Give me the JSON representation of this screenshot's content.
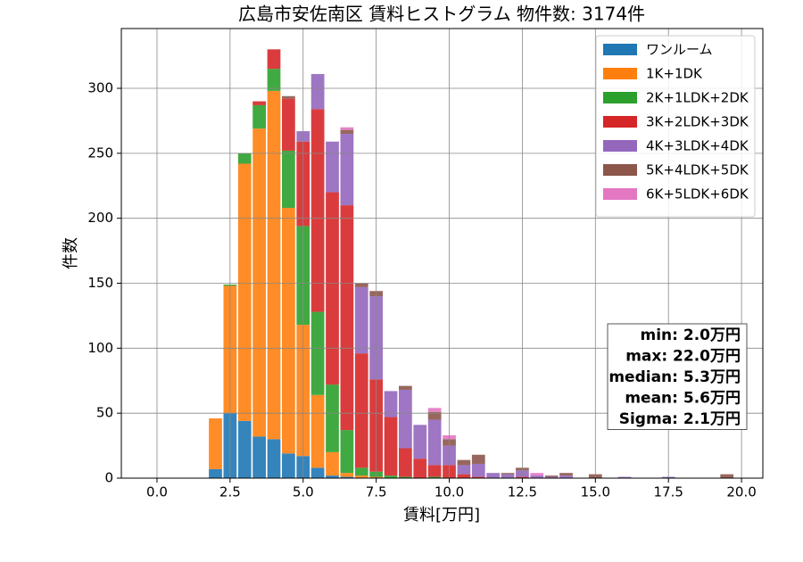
{
  "chart_data": {
    "type": "stacked_histogram",
    "title": "広島市安佐南区 賃料ヒストグラム 物件数: 3174件",
    "x_label": "賃料[万円]",
    "y_label": "件数",
    "bins": [
      1.75,
      2.25,
      2.75,
      3.25,
      3.75,
      4.25,
      4.75,
      5.25,
      5.75,
      6.25,
      6.75,
      7.25,
      7.75,
      8.25,
      8.75,
      9.25,
      9.75,
      10.25,
      10.75,
      11.25,
      11.75,
      12.25,
      12.75,
      13.25,
      13.75,
      14.25,
      14.75,
      15.25,
      15.75,
      16.25,
      16.75,
      17.25,
      17.75,
      18.25,
      18.75,
      19.25,
      19.75
    ],
    "series": [
      {
        "name": "ワンルーム",
        "color": "#1f77b4",
        "values": [
          7,
          50,
          44,
          32,
          30,
          19,
          17,
          8,
          2,
          1,
          0,
          0,
          0,
          0,
          0,
          0,
          0,
          0,
          0,
          0,
          0,
          0,
          0,
          0,
          0,
          0,
          0,
          0,
          0,
          0,
          0,
          0,
          0,
          0,
          0,
          0
        ]
      },
      {
        "name": "1K+1DK",
        "color": "#ff7f0e",
        "values": [
          39,
          98,
          198,
          237,
          268,
          189,
          101,
          56,
          18,
          3,
          2,
          1,
          0,
          0,
          0,
          0,
          0,
          0,
          0,
          0,
          0,
          0,
          0,
          0,
          0,
          0,
          0,
          0,
          0,
          0,
          0,
          0,
          0,
          0,
          0,
          0
        ]
      },
      {
        "name": "2K+1LDK+2DK",
        "color": "#2ca02c",
        "values": [
          0,
          1,
          8,
          18,
          17,
          44,
          76,
          64,
          52,
          33,
          6,
          4,
          2,
          1,
          0,
          1,
          0,
          0,
          0,
          0,
          0,
          0,
          0,
          0,
          0,
          0,
          0,
          0,
          0,
          0,
          0,
          0,
          0,
          0,
          0,
          0
        ]
      },
      {
        "name": "3K+2LDK+3DK",
        "color": "#d62728",
        "values": [
          0,
          0,
          0,
          3,
          15,
          40,
          65,
          156,
          148,
          173,
          88,
          71,
          45,
          22,
          15,
          9,
          10,
          3,
          1,
          0,
          0,
          1,
          0,
          0,
          0,
          0,
          0,
          0,
          0,
          0,
          0,
          0,
          0,
          0,
          0,
          0
        ]
      },
      {
        "name": "4K+3LDK+4DK",
        "color": "#9467bd",
        "values": [
          0,
          0,
          0,
          0,
          0,
          0,
          8,
          27,
          39,
          55,
          51,
          64,
          20,
          45,
          26,
          35,
          15,
          7,
          10,
          4,
          3,
          5,
          2,
          1,
          2,
          0,
          0,
          0,
          1,
          0,
          0,
          1,
          0,
          0,
          0,
          0
        ]
      },
      {
        "name": "5K+4LDK+5DK",
        "color": "#8c564b",
        "values": [
          0,
          0,
          0,
          0,
          0,
          2,
          0,
          0,
          0,
          3,
          3,
          4,
          0,
          3,
          0,
          6,
          5,
          4,
          7,
          0,
          1,
          2,
          0,
          1,
          2,
          0,
          3,
          0,
          0,
          0,
          0,
          0,
          0,
          0,
          0,
          3
        ]
      },
      {
        "name": "6K+5LDK+6DK",
        "color": "#e377c2",
        "values": [
          0,
          0,
          0,
          0,
          0,
          0,
          0,
          0,
          0,
          2,
          0,
          0,
          0,
          0,
          0,
          3,
          3,
          0,
          0,
          0,
          0,
          0,
          2,
          0,
          0,
          0,
          0,
          0,
          0,
          0,
          0,
          0,
          0,
          0,
          0,
          0
        ]
      }
    ],
    "xlim": [
      -1.22,
      20.73
    ],
    "ylim": [
      0,
      346
    ],
    "xticks": [
      {
        "value": 0,
        "label": "0.0"
      },
      2.5,
      {
        "value": 5,
        "label": "5.0"
      },
      7.5,
      {
        "value": 10,
        "label": "10.0"
      },
      12.5,
      {
        "value": 15,
        "label": "15.0"
      },
      17.5,
      {
        "value": 20,
        "label": "20.0"
      }
    ],
    "yticks": [
      0,
      50,
      100,
      150,
      200,
      250,
      300
    ],
    "grid": true,
    "legend": "upper right",
    "annotations": [
      "min: 2.0万円",
      "max: 22.0万円",
      "median: 5.3万円",
      "mean: 5.6万円",
      "Sigma: 2.1万円"
    ]
  }
}
